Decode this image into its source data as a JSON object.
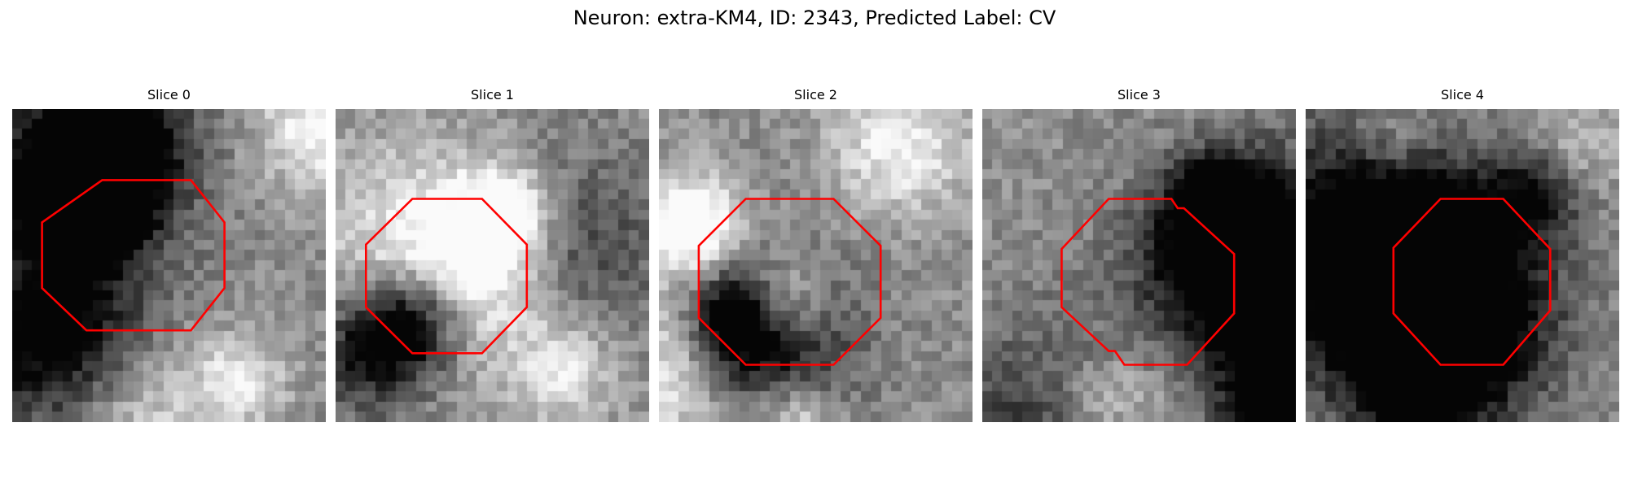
{
  "figure": {
    "title": "Neuron: extra-KM4, ID: 2343, Predicted Label: CV"
  },
  "panels": [
    {
      "title": "Slice 0",
      "seed": 11,
      "polygon": [
        [
          0.287,
          0.227
        ],
        [
          0.57,
          0.227
        ],
        [
          0.677,
          0.362
        ],
        [
          0.677,
          0.572
        ],
        [
          0.57,
          0.707
        ],
        [
          0.237,
          0.707
        ],
        [
          0.095,
          0.572
        ],
        [
          0.095,
          0.362
        ]
      ]
    },
    {
      "title": "Slice 1",
      "seed": 23,
      "polygon": [
        [
          0.245,
          0.287
        ],
        [
          0.467,
          0.287
        ],
        [
          0.61,
          0.433
        ],
        [
          0.61,
          0.633
        ],
        [
          0.467,
          0.78
        ],
        [
          0.245,
          0.78
        ],
        [
          0.097,
          0.633
        ],
        [
          0.097,
          0.433
        ]
      ]
    },
    {
      "title": "Slice 2",
      "seed": 37,
      "polygon": [
        [
          0.277,
          0.287
        ],
        [
          0.557,
          0.287
        ],
        [
          0.707,
          0.437
        ],
        [
          0.707,
          0.667
        ],
        [
          0.557,
          0.817
        ],
        [
          0.277,
          0.817
        ],
        [
          0.127,
          0.667
        ],
        [
          0.127,
          0.437
        ]
      ]
    },
    {
      "title": "Slice 3",
      "seed": 41,
      "polygon": [
        [
          0.403,
          0.287
        ],
        [
          0.603,
          0.287
        ],
        [
          0.623,
          0.317
        ],
        [
          0.643,
          0.317
        ],
        [
          0.803,
          0.463
        ],
        [
          0.803,
          0.653
        ],
        [
          0.653,
          0.817
        ],
        [
          0.453,
          0.817
        ],
        [
          0.423,
          0.773
        ],
        [
          0.403,
          0.773
        ],
        [
          0.253,
          0.633
        ],
        [
          0.253,
          0.447
        ]
      ]
    },
    {
      "title": "Slice 4",
      "seed": 53,
      "polygon": [
        [
          0.43,
          0.287
        ],
        [
          0.63,
          0.287
        ],
        [
          0.78,
          0.447
        ],
        [
          0.78,
          0.643
        ],
        [
          0.63,
          0.817
        ],
        [
          0.43,
          0.817
        ],
        [
          0.28,
          0.653
        ],
        [
          0.28,
          0.443
        ]
      ]
    }
  ],
  "colors": {
    "outline": "#ff0000"
  }
}
